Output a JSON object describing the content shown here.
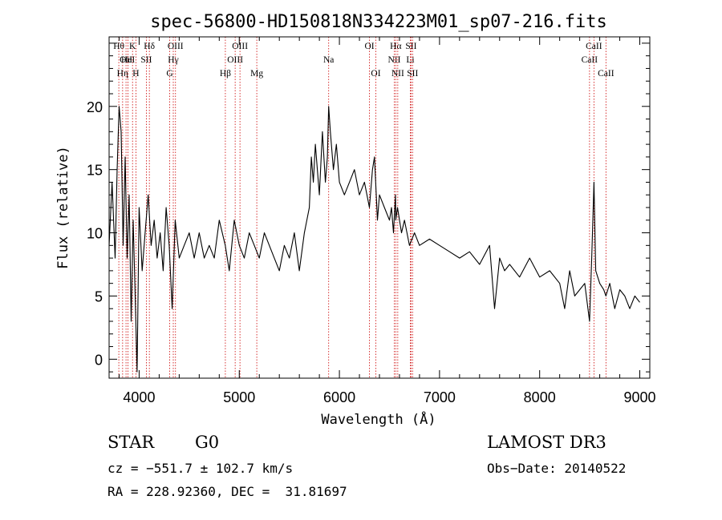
{
  "chart_data": {
    "type": "line",
    "title": "spec-56800-HD150818N334223M01_sp07-216.fits",
    "xlabel": "Wavelength (Å)",
    "ylabel": "Flux (relative)",
    "xlim": [
      3700,
      9100
    ],
    "ylim": [
      -1.5,
      25.5
    ],
    "xticks": [
      4000,
      5000,
      6000,
      7000,
      8000,
      9000
    ],
    "yticks": [
      0,
      5,
      10,
      15,
      20
    ],
    "grid": false,
    "series": [
      {
        "x": [
          3700,
          3730,
          3760,
          3780,
          3800,
          3820,
          3840,
          3860,
          3880,
          3900,
          3920,
          3940,
          3960,
          3980,
          4000,
          4030,
          4060,
          4090,
          4120,
          4150,
          4180,
          4210,
          4240,
          4270,
          4300,
          4330,
          4360,
          4400,
          4450,
          4500,
          4550,
          4600,
          4650,
          4700,
          4750,
          4800,
          4860,
          4900,
          4950,
          5000,
          5050,
          5100,
          5150,
          5200,
          5250,
          5300,
          5350,
          5400,
          5450,
          5500,
          5550,
          5600,
          5650,
          5700,
          5720,
          5740,
          5760,
          5780,
          5800,
          5830,
          5860,
          5880,
          5893,
          5910,
          5940,
          5970,
          6000,
          6050,
          6100,
          6150,
          6200,
          6250,
          6300,
          6330,
          6350,
          6380,
          6400,
          6450,
          6500,
          6520,
          6540,
          6560,
          6563,
          6580,
          6620,
          6650,
          6700,
          6750,
          6800,
          6900,
          7000,
          7100,
          7200,
          7300,
          7400,
          7500,
          7550,
          7600,
          7650,
          7700,
          7800,
          7900,
          8000,
          8100,
          8200,
          8250,
          8300,
          8350,
          8400,
          8450,
          8498,
          8520,
          8542,
          8560,
          8600,
          8640,
          8662,
          8700,
          8750,
          8800,
          8850,
          8900,
          8950,
          9000
        ],
        "values": [
          9,
          14,
          8,
          15,
          20,
          18,
          9,
          16,
          8,
          13,
          3,
          11,
          5,
          -1,
          12,
          7,
          10,
          13,
          9,
          11,
          8,
          10,
          7,
          12,
          9,
          4,
          11,
          8,
          9,
          10,
          8,
          10,
          8,
          9,
          8,
          11,
          9,
          7,
          11,
          9,
          8,
          10,
          9,
          8,
          10,
          9,
          8,
          7,
          9,
          8,
          10,
          7,
          10,
          12,
          16,
          14,
          17,
          15,
          13,
          18,
          14,
          16,
          20,
          18,
          15,
          17,
          14,
          13,
          14,
          15,
          13,
          14,
          12,
          15,
          16,
          11,
          13,
          12,
          11,
          12,
          10,
          13,
          11,
          12,
          10,
          11,
          9,
          10,
          9,
          9.5,
          9,
          8.5,
          8,
          8.5,
          7.5,
          9,
          4,
          8,
          7,
          7.5,
          6.5,
          8,
          6.5,
          7,
          6,
          4,
          7,
          5,
          5.5,
          6,
          3,
          8,
          14,
          7,
          6,
          5.5,
          5,
          6,
          4,
          5.5,
          5,
          4,
          5,
          4.5
        ]
      }
    ],
    "line_markers": [
      {
        "x": 3797,
        "label": "Hθ",
        "row": 0
      },
      {
        "x": 3835,
        "label": "Hη",
        "row": 2
      },
      {
        "x": 3869,
        "label": "OII",
        "row": 1
      },
      {
        "x": 3889,
        "label": "HeI",
        "row": 1
      },
      {
        "x": 3934,
        "label": "K",
        "row": 0
      },
      {
        "x": 3968,
        "label": "H",
        "row": 2
      },
      {
        "x": 4072,
        "label": "SII",
        "row": 1
      },
      {
        "x": 4102,
        "label": "Hδ",
        "row": 0
      },
      {
        "x": 4305,
        "label": "G",
        "row": 2
      },
      {
        "x": 4341,
        "label": "Hγ",
        "row": 1
      },
      {
        "x": 4363,
        "label": "OIII",
        "row": 0
      },
      {
        "x": 4861,
        "label": "Hβ",
        "row": 2
      },
      {
        "x": 4959,
        "label": "OIII",
        "row": 1
      },
      {
        "x": 5007,
        "label": "OIII",
        "row": 0
      },
      {
        "x": 5175,
        "label": "Mg",
        "row": 2
      },
      {
        "x": 5893,
        "label": "Na",
        "row": 1
      },
      {
        "x": 6300,
        "label": "OI",
        "row": 0
      },
      {
        "x": 6364,
        "label": "OI",
        "row": 2
      },
      {
        "x": 6548,
        "label": "NII",
        "row": 1
      },
      {
        "x": 6563,
        "label": "Hα",
        "row": 0
      },
      {
        "x": 6583,
        "label": "NII",
        "row": 2
      },
      {
        "x": 6708,
        "label": "Li",
        "row": 1
      },
      {
        "x": 6716,
        "label": "SII",
        "row": 0
      },
      {
        "x": 6731,
        "label": "SII",
        "row": 2
      },
      {
        "x": 8498,
        "label": "CaII",
        "row": 1
      },
      {
        "x": 8542,
        "label": "CaII",
        "row": 0
      },
      {
        "x": 8662,
        "label": "CaII",
        "row": 2
      }
    ]
  },
  "info": {
    "class_label": "STAR",
    "subclass": "G0",
    "survey": "LAMOST DR3",
    "cz": "cz = −551.7 ± 102.7 km/s",
    "obs_date": "Obs−Date: 20140522",
    "coords": "RA = 228.92360, DEC =  31.81697"
  }
}
